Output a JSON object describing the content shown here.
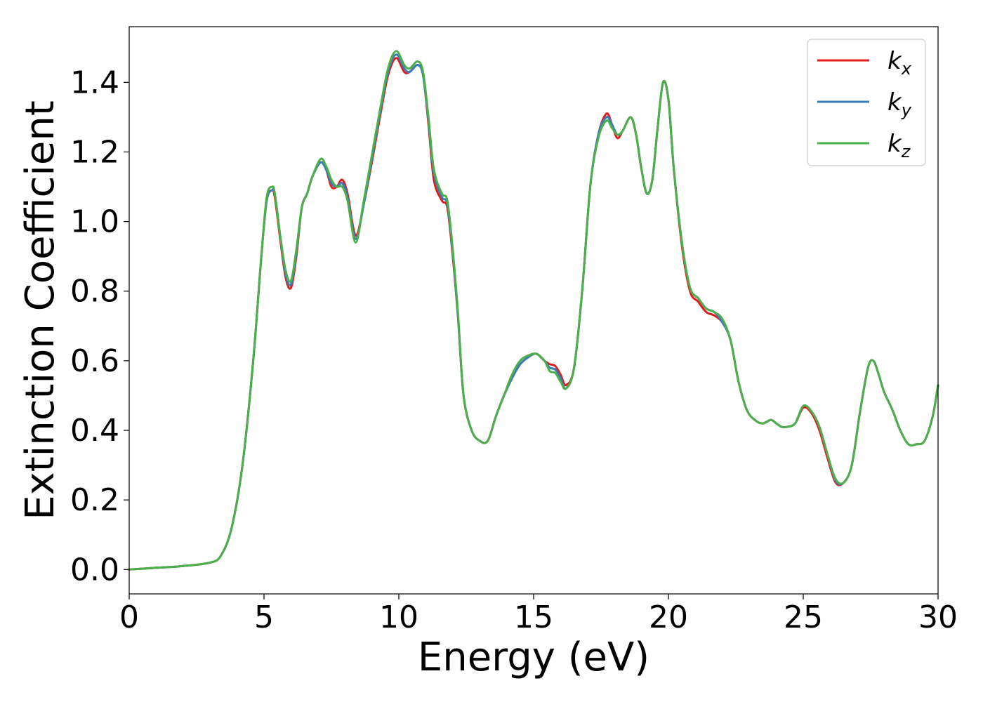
{
  "chart_data": {
    "type": "line",
    "title": "",
    "xlabel": "Energy (eV)",
    "ylabel": "Extinction Coefficient",
    "xlim": [
      0,
      30
    ],
    "ylim": [
      -0.07,
      1.56
    ],
    "xticks": [
      0,
      5,
      10,
      15,
      20,
      25,
      30
    ],
    "yticks": [
      0.0,
      0.2,
      0.4,
      0.6,
      0.8,
      1.0,
      1.2,
      1.4
    ],
    "ytick_labels": [
      "0.0",
      "0.2",
      "0.4",
      "0.6",
      "0.8",
      "1.0",
      "1.2",
      "1.4"
    ],
    "grid": false,
    "legend_position": "top-right",
    "series": [
      {
        "label_main": "k",
        "label_sub": "x",
        "color": "#e41a1c",
        "x": [
          0,
          1,
          2,
          3,
          3.4,
          3.8,
          4.2,
          4.6,
          4.9,
          5.1,
          5.3,
          5.4,
          5.6,
          5.8,
          6.0,
          6.2,
          6.4,
          6.6,
          6.8,
          7.1,
          7.3,
          7.5,
          7.7,
          7.9,
          8.1,
          8.4,
          8.7,
          9.0,
          9.3,
          9.6,
          9.9,
          10.2,
          10.4,
          10.7,
          10.9,
          11.1,
          11.3,
          11.6,
          11.8,
          12.0,
          12.2,
          12.4,
          12.7,
          13.0,
          13.3,
          13.6,
          13.9,
          14.2,
          14.5,
          14.8,
          15.1,
          15.4,
          15.6,
          15.8,
          16.0,
          16.2,
          16.5,
          16.8,
          17.1,
          17.4,
          17.7,
          17.9,
          18.1,
          18.3,
          18.6,
          18.8,
          19.0,
          19.2,
          19.4,
          19.6,
          19.8,
          20.0,
          20.2,
          20.5,
          20.8,
          21.1,
          21.4,
          21.7,
          22.0,
          22.3,
          22.6,
          22.9,
          23.2,
          23.5,
          23.8,
          24.0,
          24.2,
          24.4,
          24.7,
          25.0,
          25.3,
          25.6,
          25.9,
          26.2,
          26.5,
          26.8,
          27.1,
          27.4,
          27.6,
          27.8,
          28.0,
          28.3,
          28.6,
          28.9,
          29.2,
          29.5,
          29.8,
          30.0
        ],
        "y": [
          0.0,
          0.005,
          0.01,
          0.02,
          0.04,
          0.12,
          0.3,
          0.6,
          0.9,
          1.06,
          1.09,
          1.07,
          0.95,
          0.84,
          0.81,
          0.9,
          1.04,
          1.08,
          1.13,
          1.17,
          1.15,
          1.1,
          1.1,
          1.12,
          1.08,
          0.96,
          1.05,
          1.17,
          1.3,
          1.42,
          1.47,
          1.43,
          1.43,
          1.45,
          1.42,
          1.28,
          1.12,
          1.06,
          1.04,
          0.9,
          0.72,
          0.5,
          0.4,
          0.37,
          0.37,
          0.44,
          0.5,
          0.55,
          0.59,
          0.61,
          0.62,
          0.6,
          0.59,
          0.585,
          0.56,
          0.53,
          0.58,
          0.8,
          1.1,
          1.25,
          1.31,
          1.28,
          1.24,
          1.26,
          1.3,
          1.25,
          1.15,
          1.08,
          1.12,
          1.27,
          1.4,
          1.35,
          1.15,
          0.93,
          0.8,
          0.77,
          0.74,
          0.73,
          0.71,
          0.66,
          0.54,
          0.46,
          0.43,
          0.42,
          0.43,
          0.42,
          0.41,
          0.41,
          0.42,
          0.465,
          0.45,
          0.4,
          0.32,
          0.25,
          0.25,
          0.3,
          0.45,
          0.58,
          0.6,
          0.56,
          0.51,
          0.46,
          0.4,
          0.36,
          0.36,
          0.37,
          0.44,
          0.53
        ]
      },
      {
        "label_main": "k",
        "label_sub": "y",
        "color": "#377eb8",
        "x": [
          0,
          1,
          2,
          3,
          3.4,
          3.8,
          4.2,
          4.6,
          4.9,
          5.1,
          5.3,
          5.4,
          5.6,
          5.8,
          6.0,
          6.2,
          6.4,
          6.6,
          6.8,
          7.1,
          7.3,
          7.5,
          7.7,
          7.9,
          8.1,
          8.4,
          8.7,
          9.0,
          9.3,
          9.6,
          9.9,
          10.2,
          10.4,
          10.7,
          10.9,
          11.1,
          11.3,
          11.6,
          11.8,
          12.0,
          12.2,
          12.4,
          12.7,
          13.0,
          13.3,
          13.6,
          13.9,
          14.2,
          14.5,
          14.8,
          15.1,
          15.4,
          15.6,
          15.8,
          16.0,
          16.2,
          16.5,
          16.8,
          17.1,
          17.4,
          17.7,
          17.9,
          18.1,
          18.3,
          18.6,
          18.8,
          19.0,
          19.2,
          19.4,
          19.6,
          19.8,
          20.0,
          20.2,
          20.5,
          20.8,
          21.1,
          21.4,
          21.7,
          22.0,
          22.3,
          22.6,
          22.9,
          23.2,
          23.5,
          23.8,
          24.0,
          24.2,
          24.4,
          24.7,
          25.0,
          25.3,
          25.6,
          25.9,
          26.2,
          26.5,
          26.8,
          27.1,
          27.4,
          27.6,
          27.8,
          28.0,
          28.3,
          28.6,
          28.9,
          29.2,
          29.5,
          29.8,
          30.0
        ],
        "y": [
          0.0,
          0.005,
          0.01,
          0.02,
          0.04,
          0.12,
          0.3,
          0.6,
          0.9,
          1.06,
          1.09,
          1.08,
          0.96,
          0.85,
          0.82,
          0.91,
          1.04,
          1.08,
          1.13,
          1.17,
          1.15,
          1.11,
          1.1,
          1.11,
          1.07,
          0.95,
          1.05,
          1.18,
          1.31,
          1.43,
          1.48,
          1.44,
          1.43,
          1.45,
          1.42,
          1.29,
          1.14,
          1.07,
          1.05,
          0.91,
          0.72,
          0.5,
          0.4,
          0.37,
          0.37,
          0.44,
          0.5,
          0.55,
          0.59,
          0.61,
          0.62,
          0.6,
          0.58,
          0.575,
          0.55,
          0.52,
          0.58,
          0.8,
          1.1,
          1.25,
          1.3,
          1.28,
          1.25,
          1.26,
          1.3,
          1.25,
          1.15,
          1.08,
          1.12,
          1.27,
          1.4,
          1.35,
          1.15,
          0.94,
          0.81,
          0.78,
          0.75,
          0.74,
          0.71,
          0.66,
          0.54,
          0.46,
          0.43,
          0.42,
          0.43,
          0.42,
          0.41,
          0.41,
          0.42,
          0.47,
          0.455,
          0.41,
          0.33,
          0.255,
          0.25,
          0.3,
          0.45,
          0.58,
          0.6,
          0.56,
          0.51,
          0.46,
          0.4,
          0.36,
          0.36,
          0.37,
          0.44,
          0.53
        ]
      },
      {
        "label_main": "k",
        "label_sub": "z",
        "color": "#4daf4a",
        "x": [
          0,
          1,
          2,
          3,
          3.4,
          3.8,
          4.2,
          4.6,
          4.9,
          5.1,
          5.3,
          5.4,
          5.6,
          5.8,
          6.0,
          6.2,
          6.4,
          6.6,
          6.8,
          7.1,
          7.3,
          7.5,
          7.7,
          7.9,
          8.1,
          8.4,
          8.7,
          9.0,
          9.3,
          9.6,
          9.9,
          10.2,
          10.4,
          10.7,
          10.9,
          11.1,
          11.3,
          11.6,
          11.8,
          12.0,
          12.2,
          12.4,
          12.7,
          13.0,
          13.3,
          13.6,
          13.9,
          14.2,
          14.5,
          14.8,
          15.1,
          15.4,
          15.6,
          15.8,
          16.0,
          16.2,
          16.5,
          16.8,
          17.1,
          17.4,
          17.7,
          17.9,
          18.1,
          18.3,
          18.6,
          18.8,
          19.0,
          19.2,
          19.4,
          19.6,
          19.8,
          20.0,
          20.2,
          20.5,
          20.8,
          21.1,
          21.4,
          21.7,
          22.0,
          22.3,
          22.6,
          22.9,
          23.2,
          23.5,
          23.8,
          24.0,
          24.2,
          24.4,
          24.7,
          25.0,
          25.3,
          25.6,
          25.9,
          26.2,
          26.5,
          26.8,
          27.1,
          27.4,
          27.6,
          27.8,
          28.0,
          28.3,
          28.6,
          28.9,
          29.2,
          29.5,
          29.8,
          30.0
        ],
        "y": [
          0.0,
          0.005,
          0.01,
          0.02,
          0.04,
          0.12,
          0.3,
          0.6,
          0.9,
          1.07,
          1.1,
          1.08,
          0.96,
          0.86,
          0.83,
          0.92,
          1.04,
          1.08,
          1.13,
          1.18,
          1.16,
          1.12,
          1.1,
          1.1,
          1.06,
          0.94,
          1.06,
          1.19,
          1.32,
          1.44,
          1.49,
          1.45,
          1.44,
          1.46,
          1.43,
          1.3,
          1.15,
          1.08,
          1.06,
          0.92,
          0.73,
          0.5,
          0.4,
          0.37,
          0.37,
          0.44,
          0.5,
          0.56,
          0.6,
          0.615,
          0.62,
          0.6,
          0.57,
          0.565,
          0.54,
          0.52,
          0.58,
          0.8,
          1.1,
          1.24,
          1.29,
          1.27,
          1.25,
          1.26,
          1.3,
          1.25,
          1.15,
          1.08,
          1.12,
          1.27,
          1.4,
          1.35,
          1.15,
          0.94,
          0.81,
          0.78,
          0.75,
          0.74,
          0.72,
          0.66,
          0.54,
          0.46,
          0.43,
          0.42,
          0.43,
          0.42,
          0.41,
          0.41,
          0.42,
          0.47,
          0.455,
          0.41,
          0.33,
          0.26,
          0.25,
          0.3,
          0.45,
          0.58,
          0.6,
          0.56,
          0.51,
          0.46,
          0.4,
          0.36,
          0.36,
          0.37,
          0.44,
          0.53
        ]
      }
    ]
  }
}
